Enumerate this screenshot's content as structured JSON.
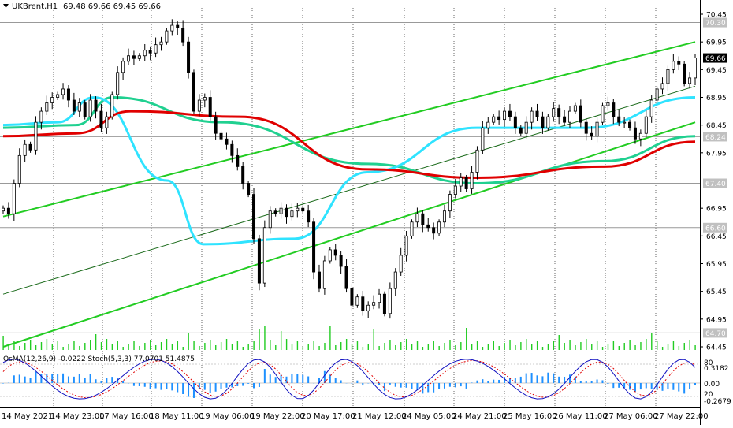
{
  "header": {
    "symbol": "UKBrent,H1",
    "ohlc": "69.48 69.66 69.45 69.66"
  },
  "price_axis": {
    "ticks": [
      "70.45",
      "69.95",
      "69.45",
      "68.95",
      "68.45",
      "67.95",
      "66.95",
      "66.45",
      "65.95",
      "65.45",
      "64.95",
      "64.45"
    ],
    "tick_values": [
      70.45,
      69.95,
      69.45,
      68.95,
      68.45,
      67.95,
      66.95,
      66.45,
      65.95,
      65.45,
      64.95,
      64.45
    ],
    "levels": [
      {
        "label": "70.30",
        "value": 70.3
      },
      {
        "label": "69.66",
        "value": 69.66,
        "current": true
      },
      {
        "label": "68.24",
        "value": 68.24
      },
      {
        "label": "67.40",
        "value": 67.4
      },
      {
        "label": "66.60",
        "value": 66.6
      },
      {
        "label": "64.70",
        "value": 64.7
      }
    ]
  },
  "time_axis": {
    "labels": [
      "14 May 2021",
      "14 May 23:00",
      "17 May 16:00",
      "18 May 11:00",
      "19 May 06:00",
      "19 May 22:00",
      "20 May 17:00",
      "21 May 12:00",
      "24 May 05:00",
      "24 May 21:00",
      "25 May 16:00",
      "26 May 11:00",
      "27 May 06:00",
      "27 May 22:00"
    ]
  },
  "indicator": {
    "title": "OsMA(12,26,9) -0.0222  Stoch(5,3,3) 77.0701 51.4875",
    "ticks": [
      "80",
      "0.3182",
      "0.00",
      "20",
      "-0.2679"
    ]
  },
  "colors": {
    "candle": "#000000",
    "ema_fast": "#2fe3ff",
    "ema_mid": "#20d090",
    "ema_slow": "#e00000",
    "channel": "#22cc22",
    "volume": "#22cc22",
    "osma": "#1e90ff",
    "stoch_main": "#1010c0",
    "stoch_signal": "#e00000"
  },
  "chart_data": {
    "type": "candlestick",
    "symbol": "UKBrent",
    "timeframe": "H1",
    "ylim": [
      64.45,
      70.55
    ],
    "closes": [
      66.95,
      66.85,
      67.4,
      67.9,
      68.1,
      68.0,
      68.5,
      68.7,
      68.85,
      68.95,
      69.0,
      69.1,
      68.9,
      68.7,
      68.85,
      68.6,
      68.9,
      68.7,
      68.4,
      68.6,
      69.0,
      69.4,
      69.6,
      69.7,
      69.65,
      69.7,
      69.8,
      69.75,
      69.9,
      69.95,
      70.15,
      70.25,
      70.2,
      69.95,
      69.4,
      68.7,
      68.9,
      68.95,
      68.6,
      68.3,
      68.2,
      68.1,
      67.9,
      67.7,
      67.4,
      67.2,
      66.4,
      65.6,
      66.6,
      66.9,
      66.85,
      66.95,
      66.8,
      66.9,
      66.95,
      66.9,
      66.7,
      65.8,
      65.5,
      66.0,
      66.2,
      66.1,
      65.9,
      65.5,
      65.2,
      65.35,
      65.1,
      65.2,
      65.25,
      65.4,
      65.05,
      65.5,
      65.8,
      66.1,
      66.45,
      66.7,
      66.85,
      66.65,
      66.6,
      66.5,
      66.7,
      66.9,
      67.2,
      67.35,
      67.5,
      67.3,
      67.6,
      68.0,
      68.4,
      68.5,
      68.6,
      68.55,
      68.7,
      68.6,
      68.4,
      68.3,
      68.5,
      68.7,
      68.6,
      68.4,
      68.6,
      68.75,
      68.6,
      68.5,
      68.7,
      68.8,
      68.5,
      68.3,
      68.25,
      68.5,
      68.8,
      68.85,
      68.6,
      68.5,
      68.5,
      68.4,
      68.2,
      68.3,
      68.6,
      68.9,
      69.1,
      69.2,
      69.45,
      69.6,
      69.55,
      69.2,
      69.3,
      69.66
    ],
    "ema_fast": {
      "start": [
        0,
        68.45
      ],
      "points": [
        [
          30,
          68.5
        ],
        [
          50,
          68.95
        ],
        [
          90,
          67.45
        ],
        [
          110,
          66.3
        ],
        [
          160,
          66.4
        ],
        [
          200,
          67.6
        ],
        [
          260,
          68.4
        ],
        [
          320,
          68.4
        ],
        [
          380,
          68.95
        ]
      ]
    },
    "ema_mid": {
      "start": [
        0,
        68.4
      ],
      "points": [
        [
          40,
          68.45
        ],
        [
          60,
          68.95
        ],
        [
          120,
          68.5
        ],
        [
          200,
          67.75
        ],
        [
          260,
          67.4
        ],
        [
          330,
          67.8
        ],
        [
          380,
          68.25
        ]
      ]
    },
    "ema_slow": {
      "start": [
        0,
        68.25
      ],
      "points": [
        [
          40,
          68.3
        ],
        [
          70,
          68.7
        ],
        [
          130,
          68.6
        ],
        [
          200,
          67.65
        ],
        [
          260,
          67.5
        ],
        [
          330,
          67.7
        ],
        [
          380,
          68.15
        ]
      ]
    },
    "channel": {
      "upper": [
        [
          0,
          66.8
        ],
        [
          380,
          69.95
        ]
      ],
      "middle": [
        [
          0,
          65.4
        ],
        [
          380,
          69.15
        ]
      ],
      "lower": [
        [
          0,
          64.45
        ],
        [
          380,
          68.5
        ]
      ]
    },
    "oscillator": {
      "osma_range": [
        -0.2679,
        0.3182
      ],
      "stoch_levels": [
        20,
        80
      ]
    }
  }
}
